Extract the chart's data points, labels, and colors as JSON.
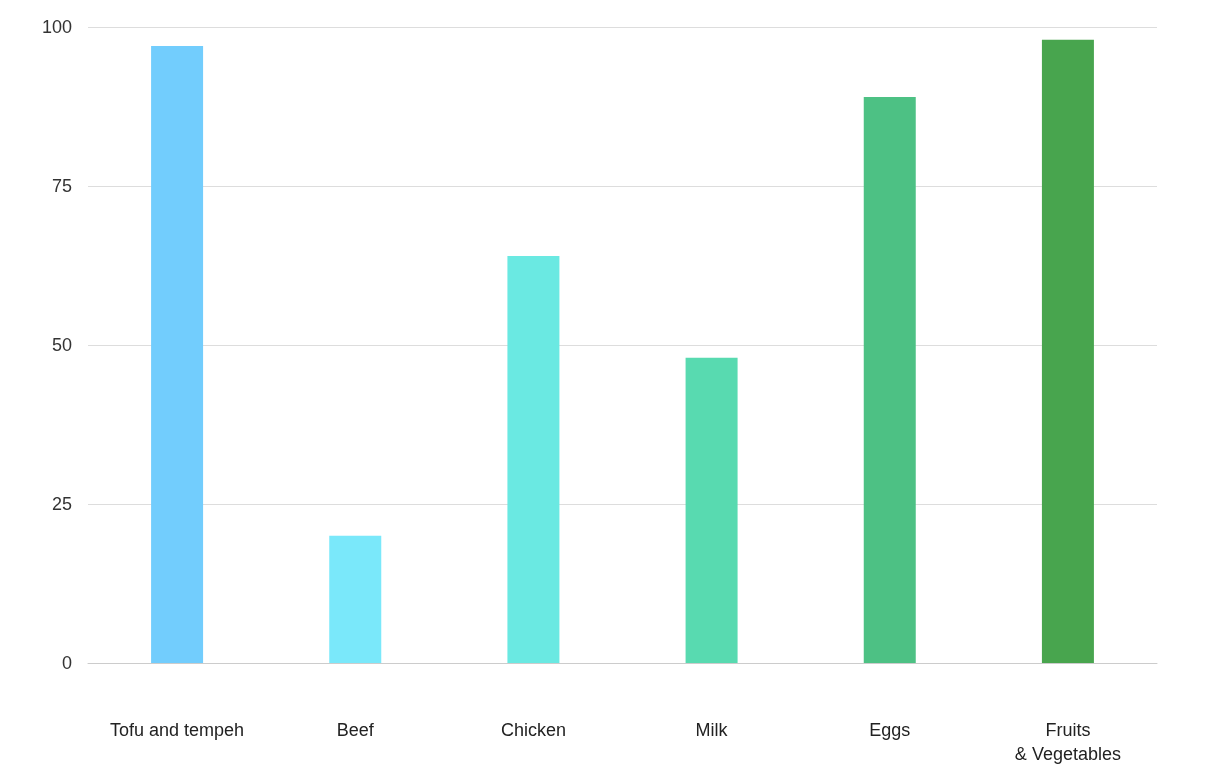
{
  "chart_data": {
    "type": "bar",
    "categories": [
      "Tofu and tempeh",
      "Beef",
      "Chicken",
      "Milk",
      "Eggs",
      "Fruits\n& Vegetables"
    ],
    "values": [
      97,
      20,
      64,
      48,
      89,
      98
    ],
    "colors": [
      "#72cdfd",
      "#7ae8fa",
      "#6ae9e2",
      "#58dab0",
      "#4dc184",
      "#48a54e"
    ],
    "ylim": [
      0,
      100
    ],
    "yticks": [
      0,
      25,
      50,
      75,
      100
    ],
    "grid": "y"
  }
}
